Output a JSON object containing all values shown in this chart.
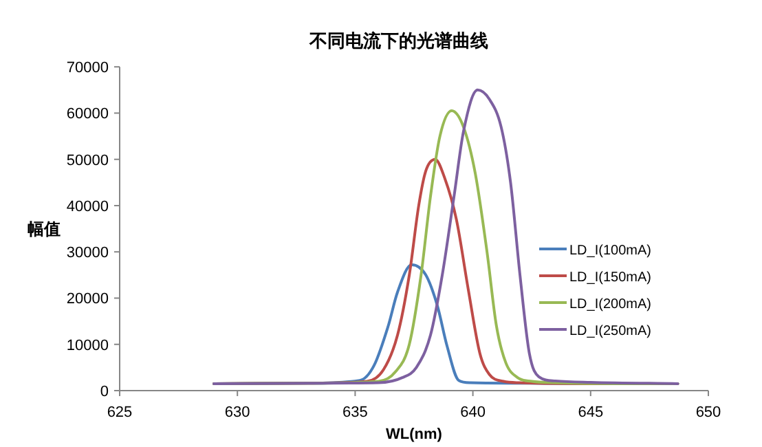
{
  "chart_data": {
    "type": "line",
    "title": "不同电流下的光谱曲线",
    "xlabel": "WL(nm)",
    "ylabel": "幅值",
    "xlim": [
      625,
      650
    ],
    "xticks": [
      625,
      630,
      635,
      640,
      645,
      650
    ],
    "ylim": [
      0,
      70000
    ],
    "yticks": [
      0,
      10000,
      20000,
      30000,
      40000,
      50000,
      60000,
      70000
    ],
    "grid": false,
    "legend": "right",
    "series": [
      {
        "name": "LD_I(100mA)",
        "color": "#4a7ebb",
        "x": [
          629,
          633,
          635.2,
          635.8,
          636.4,
          636.8,
          637.4,
          638.0,
          638.5,
          638.9,
          639.4,
          639.9,
          642,
          645,
          648.7
        ],
        "values": [
          1500,
          1600,
          2200,
          5400,
          13900,
          21300,
          27200,
          25000,
          18200,
          9700,
          2200,
          1700,
          1600,
          1500,
          1500
        ]
      },
      {
        "name": "LD_I(150mA)",
        "color": "#be4b48",
        "x": [
          629,
          633,
          635.5,
          636.2,
          636.8,
          637.3,
          637.7,
          638.0,
          638.4,
          638.8,
          639.3,
          639.8,
          640.3,
          640.7,
          641.3,
          642,
          645,
          648.7
        ],
        "values": [
          1500,
          1600,
          2000,
          4500,
          12000,
          25000,
          40000,
          47500,
          50000,
          46000,
          37000,
          22000,
          8000,
          3500,
          2000,
          1700,
          1500,
          1500
        ]
      },
      {
        "name": "LD_I(200mA)",
        "color": "#98b954",
        "x": [
          629,
          633,
          636,
          636.7,
          637.3,
          637.8,
          638.2,
          638.6,
          639.1,
          639.6,
          640.1,
          640.6,
          641.0,
          641.4,
          641.9,
          642.5,
          643.5,
          646,
          648.7
        ],
        "values": [
          1500,
          1600,
          2000,
          4000,
          10000,
          25000,
          42000,
          55000,
          60500,
          57000,
          47000,
          30000,
          14000,
          6000,
          2800,
          2000,
          1700,
          1500,
          1500
        ]
      },
      {
        "name": "LD_I(250mA)",
        "color": "#7d60a0",
        "x": [
          629,
          633,
          636,
          637,
          637.6,
          638.2,
          638.7,
          639.2,
          639.6,
          640.2,
          640.7,
          641.2,
          641.6,
          642.0,
          642.4,
          642.8,
          643.5,
          645,
          648.7
        ],
        "values": [
          1500,
          1600,
          1700,
          2800,
          5000,
          12000,
          25000,
          42000,
          56000,
          65000,
          63000,
          57000,
          45000,
          25000,
          8000,
          3000,
          2100,
          1800,
          1500
        ]
      }
    ]
  }
}
